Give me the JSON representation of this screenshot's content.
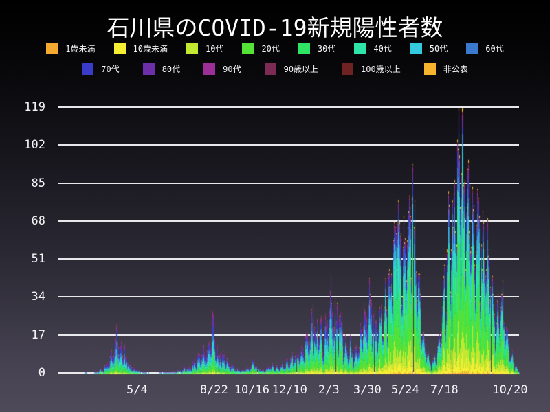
{
  "title": "石川県のCOVID-19新規陽性者数",
  "colors": {
    "background_top": "#000000",
    "background_bottom": "#4e4a59",
    "grid": "#eef0f2",
    "text": "#ffffff"
  },
  "chart_data": {
    "type": "bar",
    "subtype": "stacked-daily-bars",
    "title": "石川県のCOVID-19新規陽性者数",
    "xlabel": "",
    "ylabel": "",
    "legend_position": "top",
    "grid": true,
    "ylim": [
      0,
      119
    ],
    "y_ticks": [
      0,
      17,
      34,
      51,
      68,
      85,
      102,
      119
    ],
    "x_ticks": [
      {
        "label": "5/4",
        "day": 78
      },
      {
        "label": "8/22",
        "day": 188
      },
      {
        "label": "10/16",
        "day": 242
      },
      {
        "label": "12/10",
        "day": 296
      },
      {
        "label": "2/3",
        "day": 352
      },
      {
        "label": "3/30",
        "day": 407
      },
      {
        "label": "5/24",
        "day": 461
      },
      {
        "label": "7/18",
        "day": 517
      },
      {
        "label": "10/20",
        "day": 611
      }
    ],
    "days_total": 625,
    "series": [
      {
        "name": "1歳未満",
        "color": "#f5a931"
      },
      {
        "name": "10歳未満",
        "color": "#f5ee33"
      },
      {
        "name": "10代",
        "color": "#c3e832"
      },
      {
        "name": "20代",
        "color": "#55e237"
      },
      {
        "name": "30代",
        "color": "#2ee465"
      },
      {
        "name": "40代",
        "color": "#2ee4a6"
      },
      {
        "name": "50代",
        "color": "#33c9de"
      },
      {
        "name": "60代",
        "color": "#3b79ce"
      },
      {
        "name": "70代",
        "color": "#3a3bc8"
      },
      {
        "name": "80代",
        "color": "#6c2fa8"
      },
      {
        "name": "90代",
        "color": "#9c2e97"
      },
      {
        "name": "90歳以上",
        "color": "#7d2b54"
      },
      {
        "name": "100歳以上",
        "color": "#6f2222"
      },
      {
        "name": "非公表",
        "color": "#f6b42e"
      }
    ],
    "daily_total_samples": [
      [
        0,
        0
      ],
      [
        5,
        1
      ],
      [
        12,
        0
      ],
      [
        20,
        1
      ],
      [
        27,
        2
      ],
      [
        34,
        5
      ],
      [
        39,
        8
      ],
      [
        44,
        12
      ],
      [
        49,
        18
      ],
      [
        53,
        10
      ],
      [
        57,
        14
      ],
      [
        62,
        8
      ],
      [
        67,
        5
      ],
      [
        72,
        3
      ],
      [
        79,
        2
      ],
      [
        88,
        1
      ],
      [
        103,
        0
      ],
      [
        118,
        1
      ],
      [
        130,
        1
      ],
      [
        139,
        2
      ],
      [
        149,
        3
      ],
      [
        159,
        5
      ],
      [
        167,
        9
      ],
      [
        172,
        14
      ],
      [
        177,
        10
      ],
      [
        182,
        13
      ],
      [
        187,
        26
      ],
      [
        190,
        13
      ],
      [
        194,
        10
      ],
      [
        200,
        8
      ],
      [
        206,
        6
      ],
      [
        214,
        4
      ],
      [
        222,
        2
      ],
      [
        230,
        2
      ],
      [
        238,
        3
      ],
      [
        246,
        6
      ],
      [
        251,
        3
      ],
      [
        259,
        2
      ],
      [
        267,
        4
      ],
      [
        275,
        3
      ],
      [
        283,
        4
      ],
      [
        291,
        5
      ],
      [
        299,
        7
      ],
      [
        306,
        9
      ],
      [
        314,
        11
      ],
      [
        319,
        15
      ],
      [
        324,
        21
      ],
      [
        329,
        30
      ],
      [
        333,
        18
      ],
      [
        338,
        23
      ],
      [
        343,
        16
      ],
      [
        348,
        21
      ],
      [
        353,
        28
      ],
      [
        357,
        33
      ],
      [
        362,
        25
      ],
      [
        367,
        29
      ],
      [
        372,
        16
      ],
      [
        377,
        11
      ],
      [
        382,
        13
      ],
      [
        387,
        9
      ],
      [
        392,
        13
      ],
      [
        397,
        19
      ],
      [
        402,
        26
      ],
      [
        407,
        31
      ],
      [
        411,
        35
      ],
      [
        416,
        29
      ],
      [
        421,
        21
      ],
      [
        427,
        26
      ],
      [
        432,
        33
      ],
      [
        437,
        41
      ],
      [
        442,
        49
      ],
      [
        447,
        60
      ],
      [
        450,
        73
      ],
      [
        453,
        81
      ],
      [
        457,
        58
      ],
      [
        462,
        63
      ],
      [
        466,
        72
      ],
      [
        470,
        100
      ],
      [
        473,
        62
      ],
      [
        477,
        47
      ],
      [
        481,
        32
      ],
      [
        485,
        22
      ],
      [
        489,
        14
      ],
      [
        493,
        9
      ],
      [
        498,
        6
      ],
      [
        503,
        8
      ],
      [
        507,
        13
      ],
      [
        512,
        22
      ],
      [
        516,
        33
      ],
      [
        520,
        48
      ],
      [
        525,
        62
      ],
      [
        529,
        72
      ],
      [
        532,
        88
      ],
      [
        535,
        117
      ],
      [
        538,
        98
      ],
      [
        541,
        116
      ],
      [
        545,
        88
      ],
      [
        548,
        95
      ],
      [
        552,
        80
      ],
      [
        555,
        90
      ],
      [
        558,
        76
      ],
      [
        562,
        62
      ],
      [
        566,
        70
      ],
      [
        570,
        60
      ],
      [
        574,
        52
      ],
      [
        577,
        46
      ],
      [
        581,
        55
      ],
      [
        584,
        40
      ],
      [
        587,
        30
      ],
      [
        591,
        24
      ],
      [
        595,
        29
      ],
      [
        599,
        33
      ],
      [
        603,
        24
      ],
      [
        607,
        15
      ],
      [
        611,
        10
      ],
      [
        615,
        7
      ],
      [
        619,
        4
      ],
      [
        624,
        1
      ]
    ],
    "age_share_eras": [
      {
        "until_day": 225,
        "shares": [
          0.005,
          0.02,
          0.04,
          0.12,
          0.12,
          0.13,
          0.14,
          0.14,
          0.12,
          0.09,
          0.05,
          0.02,
          0.005,
          0.005
        ]
      },
      {
        "until_day": 420,
        "shares": [
          0.005,
          0.03,
          0.06,
          0.16,
          0.14,
          0.13,
          0.13,
          0.12,
          0.09,
          0.06,
          0.04,
          0.015,
          0.005,
          0.005
        ]
      },
      {
        "until_day": 9999,
        "shares": [
          0.01,
          0.05,
          0.1,
          0.2,
          0.17,
          0.15,
          0.12,
          0.08,
          0.05,
          0.03,
          0.015,
          0.01,
          0.005,
          0.01
        ]
      }
    ]
  }
}
